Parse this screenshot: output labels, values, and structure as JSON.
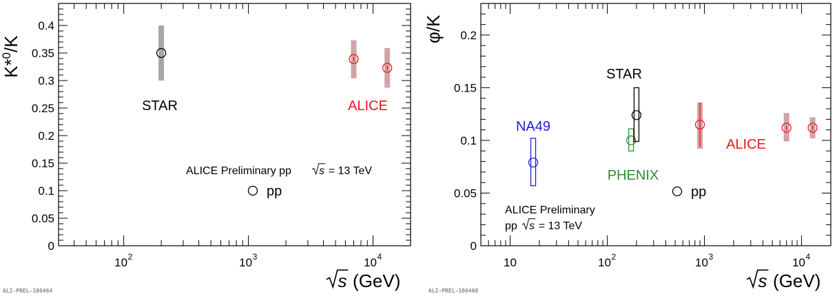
{
  "chart_data": [
    {
      "type": "scatter",
      "ylabel": "K*0/K",
      "ylabel_base": "K*",
      "ylabel_sup": "0",
      "ylabel_tail": "/K",
      "xlabel_sym": "s",
      "xlabel_unit": "(GeV)",
      "x_scale": "log",
      "xlim": [
        30,
        20000
      ],
      "ylim": [
        0,
        0.44
      ],
      "grid": false,
      "y_ticks": [
        0,
        0.05,
        0.1,
        0.15,
        0.2,
        0.25,
        0.3,
        0.35,
        0.4
      ],
      "y_tick_labels": [
        "0",
        "0.05",
        "0.1",
        "0.15",
        "0.2",
        "0.25",
        "0.3",
        "0.35",
        "0.4"
      ],
      "x_ticks": [
        {
          "base": "10",
          "exp": "2",
          "value": 100
        },
        {
          "base": "10",
          "exp": "3",
          "value": 1000
        },
        {
          "base": "10",
          "exp": "4",
          "value": 10000
        }
      ],
      "series": [
        {
          "name": "STAR",
          "color": "#000000",
          "syst_color": "#a6a6a6",
          "points": [
            {
              "x": 200,
              "y": 0.35,
              "syst_lo": 0.3,
              "syst_hi": 0.4,
              "stat": 0.0
            }
          ]
        },
        {
          "name": "ALICE",
          "color": "#e8161c",
          "syst_color": "#d3a3a5",
          "points": [
            {
              "x": 7000,
              "y": 0.339,
              "syst_lo": 0.304,
              "syst_hi": 0.373,
              "stat": 0.004
            },
            {
              "x": 13000,
              "y": 0.323,
              "syst_lo": 0.287,
              "syst_hi": 0.359,
              "stat": 0.004
            }
          ]
        }
      ],
      "legend": [
        {
          "marker": "open-circle",
          "label": "pp"
        }
      ],
      "annotation": {
        "prefix": "ALICE Preliminary pp",
        "sym": "s",
        "suffix": "= 13 TeV"
      },
      "watermark": "ALI-PREL-106464"
    },
    {
      "type": "scatter",
      "ylabel": "φ/K",
      "xlabel_sym": "s",
      "xlabel_unit": "(GeV)",
      "x_scale": "log",
      "xlim": [
        5,
        20000
      ],
      "ylim": [
        0,
        0.23
      ],
      "grid": false,
      "y_ticks": [
        0,
        0.05,
        0.1,
        0.15,
        0.2
      ],
      "y_tick_labels": [
        "0",
        "0.05",
        "0.1",
        "0.15",
        "0.2"
      ],
      "x_ticks": [
        {
          "base": "10",
          "exp": "",
          "value": 10
        },
        {
          "base": "10",
          "exp": "2",
          "value": 100
        },
        {
          "base": "10",
          "exp": "3",
          "value": 1000
        },
        {
          "base": "10",
          "exp": "4",
          "value": 10000
        }
      ],
      "series": [
        {
          "name": "NA49",
          "color": "#1c1cd6",
          "syst_style": "box",
          "points": [
            {
              "x": 17.3,
              "y": 0.079,
              "syst_lo": 0.057,
              "syst_hi": 0.102,
              "stat": 0.0
            }
          ]
        },
        {
          "name": "PHENIX",
          "color": "#2e8b2e",
          "syst_style": "box",
          "points": [
            {
              "x": 176,
              "y": 0.1,
              "syst_lo": 0.09,
              "syst_hi": 0.111,
              "stat": 0.0
            }
          ]
        },
        {
          "name": "STAR",
          "color": "#000000",
          "syst_style": "box",
          "points": [
            {
              "x": 200,
              "y": 0.124,
              "syst_lo": 0.099,
              "syst_hi": 0.15,
              "stat": 0.0
            }
          ]
        },
        {
          "name": "ALICE",
          "color": "#e8161c",
          "syst_color": "#d3a3a5",
          "points": [
            {
              "x": 900,
              "y": 0.115,
              "syst_lo": 0.092,
              "syst_hi": 0.136,
              "stat": 0.021
            },
            {
              "x": 7000,
              "y": 0.112,
              "syst_lo": 0.099,
              "syst_hi": 0.126,
              "stat": 0.002
            },
            {
              "x": 13000,
              "y": 0.112,
              "syst_lo": 0.102,
              "syst_hi": 0.122,
              "stat": 0.002
            }
          ]
        }
      ],
      "legend": [
        {
          "marker": "open-circle",
          "label": "pp"
        }
      ],
      "annotation": {
        "line1": "ALICE Preliminary",
        "prefix": "pp",
        "sym": "s",
        "suffix": "= 13 TeV"
      },
      "watermark": "ALI-PREL-106460"
    }
  ]
}
